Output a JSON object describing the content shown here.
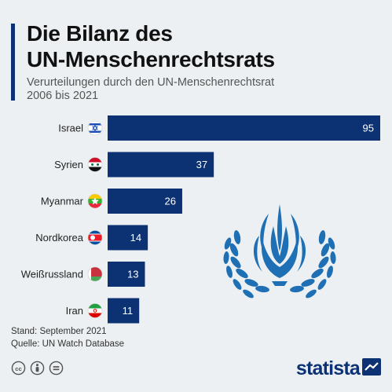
{
  "title": "Die Bilanz des UN-Menschenrechtsrats",
  "title_lines": [
    "Die Bilanz des",
    "UN-Menschenrechtsrats"
  ],
  "subtitle_lines": [
    "Verurteilungen durch den UN-Menschenrechtsrat",
    "2006 bis 2021"
  ],
  "colors": {
    "bar": "#0c3273",
    "accent": "#0c3273",
    "background": "#ecf0f2",
    "logo": "#1f6fb5"
  },
  "chart_data": {
    "type": "bar",
    "orientation": "horizontal",
    "categories": [
      "Israel",
      "Syrien",
      "Myanmar",
      "Nordkorea",
      "Weißrussland",
      "Iran"
    ],
    "values": [
      95,
      37,
      26,
      14,
      13,
      11
    ],
    "value_labels": [
      "95",
      "37",
      "26",
      "14",
      "13",
      "11"
    ],
    "flag_icons": [
      "israel-flag-icon",
      "syria-flag-icon",
      "myanmar-flag-icon",
      "north-korea-flag-icon",
      "belarus-flag-icon",
      "iran-flag-icon"
    ],
    "xlim": [
      0,
      95
    ],
    "grid": false,
    "legend": "none"
  },
  "footer": {
    "stand": "Stand: September 2021",
    "source": "Quelle: UN Watch Database"
  },
  "license_icons": [
    "cc-icon",
    "attribution-icon",
    "noderivs-icon"
  ],
  "brand": "statista",
  "decoration": {
    "logo_icon": "un-human-rights-council-logo"
  }
}
